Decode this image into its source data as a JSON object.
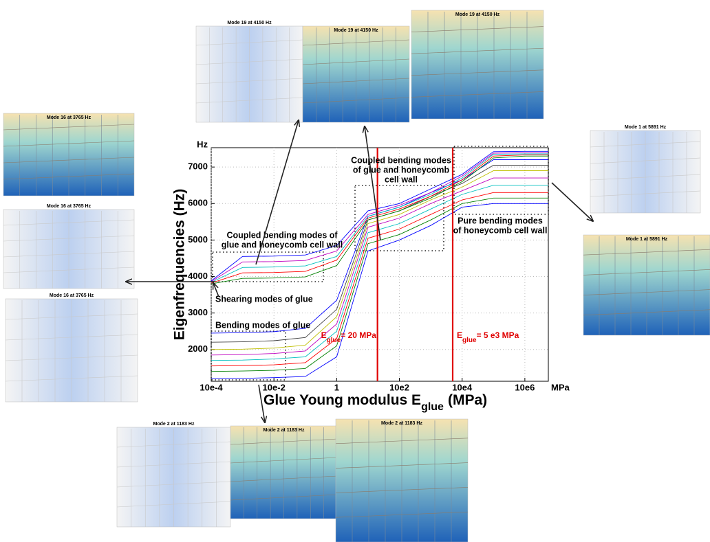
{
  "chart_data": {
    "type": "line",
    "ylabel": "Eigenfrequencies (Hz)",
    "y_unit": "Hz",
    "xlabel": "Glue Young modulus E",
    "xlabel_sub": "glue",
    "xlabel_unit": "(MPa)",
    "x_unit": "MPa",
    "xscale": "log",
    "grid": true,
    "x": [
      0.0001,
      0.001,
      0.01,
      0.1,
      1,
      10,
      100,
      1000,
      10000,
      100000,
      1000000,
      5600000
    ],
    "xlim": [
      0.0001,
      5600000
    ],
    "xticks": [
      {
        "value": 0.0001,
        "label": "10e-4"
      },
      {
        "value": 0.01,
        "label": "10e-2"
      },
      1,
      {
        "value": 100,
        "label": "10e2"
      },
      {
        "value": 10000,
        "label": "10e4"
      },
      {
        "value": 1000000,
        "label": "10e6"
      }
    ],
    "ylim": [
      1130,
      7530
    ],
    "yticks": [
      2000,
      3000,
      4000,
      5000,
      6000,
      7000
    ],
    "series": [
      {
        "color": "#0000ff",
        "values": [
          1200,
          1210,
          1230,
          1260,
          1800,
          4700,
          5000,
          5400,
          5900,
          6000,
          6000,
          6000
        ]
      },
      {
        "color": "#008000",
        "values": [
          1400,
          1410,
          1430,
          1480,
          2100,
          4900,
          5150,
          5550,
          6000,
          6150,
          6150,
          6150
        ]
      },
      {
        "color": "#ff0000",
        "values": [
          1550,
          1560,
          1580,
          1640,
          2300,
          5050,
          5300,
          5700,
          6100,
          6300,
          6300,
          6300
        ]
      },
      {
        "color": "#00bfbf",
        "values": [
          1700,
          1710,
          1740,
          1800,
          2500,
          5200,
          5450,
          5850,
          6250,
          6500,
          6500,
          6500
        ]
      },
      {
        "color": "#bf00bf",
        "values": [
          1850,
          1860,
          1890,
          1960,
          2700,
          5350,
          5600,
          6000,
          6350,
          6700,
          6700,
          6700
        ]
      },
      {
        "color": "#bfbf00",
        "values": [
          2000,
          2010,
          2040,
          2120,
          2900,
          5450,
          5700,
          6100,
          6450,
          6900,
          6900,
          6900
        ]
      },
      {
        "color": "#404040",
        "values": [
          2200,
          2210,
          2240,
          2330,
          3100,
          5550,
          5800,
          6200,
          6550,
          7050,
          7050,
          7050
        ]
      },
      {
        "color": "#0000ff",
        "values": [
          2450,
          2460,
          2490,
          2580,
          3350,
          5650,
          5900,
          6300,
          6650,
          7200,
          7200,
          7200
        ]
      },
      {
        "color": "#008000",
        "values": [
          3800,
          3950,
          3960,
          3990,
          4300,
          5550,
          5800,
          6150,
          6600,
          7250,
          7300,
          7300
        ]
      },
      {
        "color": "#ff0000",
        "values": [
          3820,
          4100,
          4110,
          4140,
          4450,
          5600,
          5850,
          6200,
          6650,
          7300,
          7330,
          7330
        ]
      },
      {
        "color": "#00bfbf",
        "values": [
          3840,
          4250,
          4260,
          4290,
          4550,
          5650,
          5900,
          6250,
          6700,
          7350,
          7360,
          7360
        ]
      },
      {
        "color": "#bf00bf",
        "values": [
          3860,
          4400,
          4410,
          4440,
          4700,
          5700,
          5950,
          6300,
          6750,
          7380,
          7390,
          7390
        ]
      },
      {
        "color": "#0000ff",
        "values": [
          3880,
          4550,
          4560,
          4590,
          4850,
          5800,
          6000,
          6400,
          6800,
          7420,
          7430,
          7430
        ]
      }
    ],
    "vlines": [
      {
        "value": 20,
        "color": "#e00000",
        "label": "E",
        "label_sub": "glue",
        "label_rest": "= 20 MPa"
      },
      {
        "value": 5000,
        "color": "#e00000",
        "label": "E",
        "label_sub": "glue",
        "label_rest": "= 5 e3 MPa"
      }
    ],
    "annotations": [
      {
        "lines": [
          "Coupled bending modes of",
          "glue and honeycomb cell wall"
        ]
      },
      {
        "lines": [
          "Shearing modes of glue"
        ]
      },
      {
        "lines": [
          "Bending modes of glue"
        ]
      },
      {
        "lines": [
          "Coupled bending modes",
          "of glue and honeycomb",
          "cell wall"
        ]
      },
      {
        "lines": [
          "Pure bending modes",
          "of honeycomb cell wall"
        ]
      }
    ]
  },
  "panels": [
    {
      "title": "Mode 19 at 4150 Hz"
    },
    {
      "title": "Mode 19 at 4150 Hz"
    },
    {
      "title": "Mode 19 at 4150 Hz"
    },
    {
      "title": "Mode 16 at 3765 Hz"
    },
    {
      "title": "Mode 16 at 3765 Hz"
    },
    {
      "title": "Mode 16 at 3765 Hz"
    },
    {
      "title": "Mode 1 at 5891 Hz"
    },
    {
      "title": "Mode 1 at 5891 Hz"
    },
    {
      "title": "Mode 2 at 1183 Hz"
    },
    {
      "title": "Mode 2 at 1183 Hz"
    },
    {
      "title": "Mode 2 at 1183 Hz"
    }
  ]
}
